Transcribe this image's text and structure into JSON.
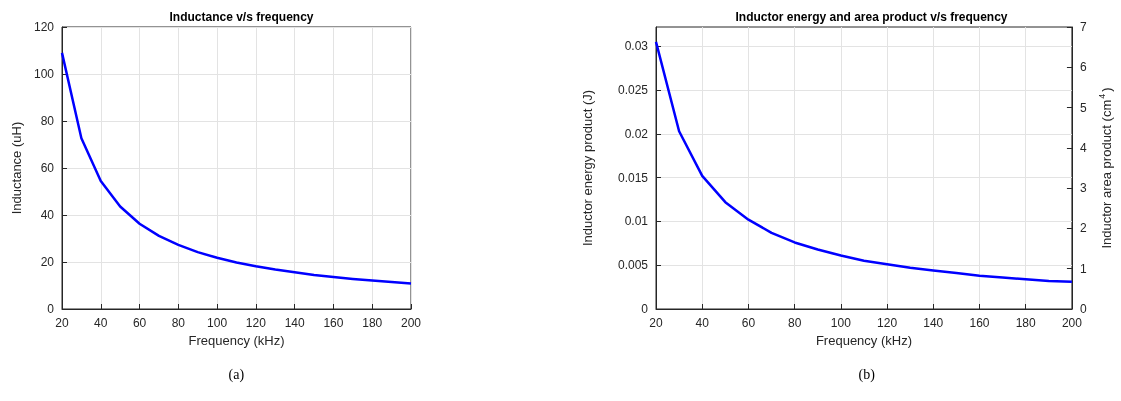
{
  "chart_data": [
    {
      "type": "line",
      "title": "Inductance v/s frequency",
      "xlabel": "Frequency (kHz)",
      "ylabel": "Inductance (uH)",
      "annotations": [
        "(a)"
      ],
      "x": [
        20,
        30,
        40,
        50,
        60,
        70,
        80,
        90,
        100,
        110,
        120,
        130,
        140,
        150,
        160,
        170,
        180,
        190,
        200
      ],
      "series": [
        {
          "color": "#0000ff",
          "values": [
            109,
            72.7,
            54.5,
            43.6,
            36.3,
            31.1,
            27.3,
            24.2,
            21.8,
            19.8,
            18.2,
            16.8,
            15.6,
            14.5,
            13.6,
            12.8,
            12.1,
            11.5,
            10.9
          ]
        }
      ],
      "xlim": [
        20,
        200
      ],
      "xticks": [
        20,
        40,
        60,
        80,
        100,
        120,
        140,
        160,
        180,
        200
      ],
      "ylim": [
        0,
        120
      ],
      "yticks": [
        0,
        20,
        40,
        60,
        80,
        100,
        120
      ],
      "grid": true
    },
    {
      "type": "line",
      "title": "Inductor energy and area product v/s frequency",
      "xlabel": "Frequency (kHz)",
      "ylabel": "Inductor energy product (J)",
      "y2label": "Inductor area product (cm$^{4}$)",
      "annotations": [
        "(b)"
      ],
      "x": [
        20,
        30,
        40,
        50,
        60,
        70,
        80,
        90,
        100,
        110,
        120,
        130,
        140,
        150,
        160,
        170,
        180,
        190,
        200
      ],
      "series": [
        {
          "color": "#0000ff",
          "values": [
            0.0305,
            0.0203,
            0.0152,
            0.0122,
            0.0102,
            0.0087,
            0.0076,
            0.0068,
            0.0061,
            0.0055,
            0.0051,
            0.0047,
            0.0044,
            0.0041,
            0.0038,
            0.0036,
            0.0034,
            0.0032,
            0.0031
          ]
        }
      ],
      "xlim": [
        20,
        200
      ],
      "xticks": [
        20,
        40,
        60,
        80,
        100,
        120,
        140,
        160,
        180,
        200
      ],
      "ylim": [
        0,
        0.0322
      ],
      "yticks": [
        0,
        0.005,
        0.01,
        0.015,
        0.02,
        0.025,
        0.03
      ],
      "y2lim": [
        0,
        7
      ],
      "y2ticks": [
        0,
        1,
        2,
        3,
        4,
        5,
        6,
        7
      ],
      "grid": true
    }
  ]
}
